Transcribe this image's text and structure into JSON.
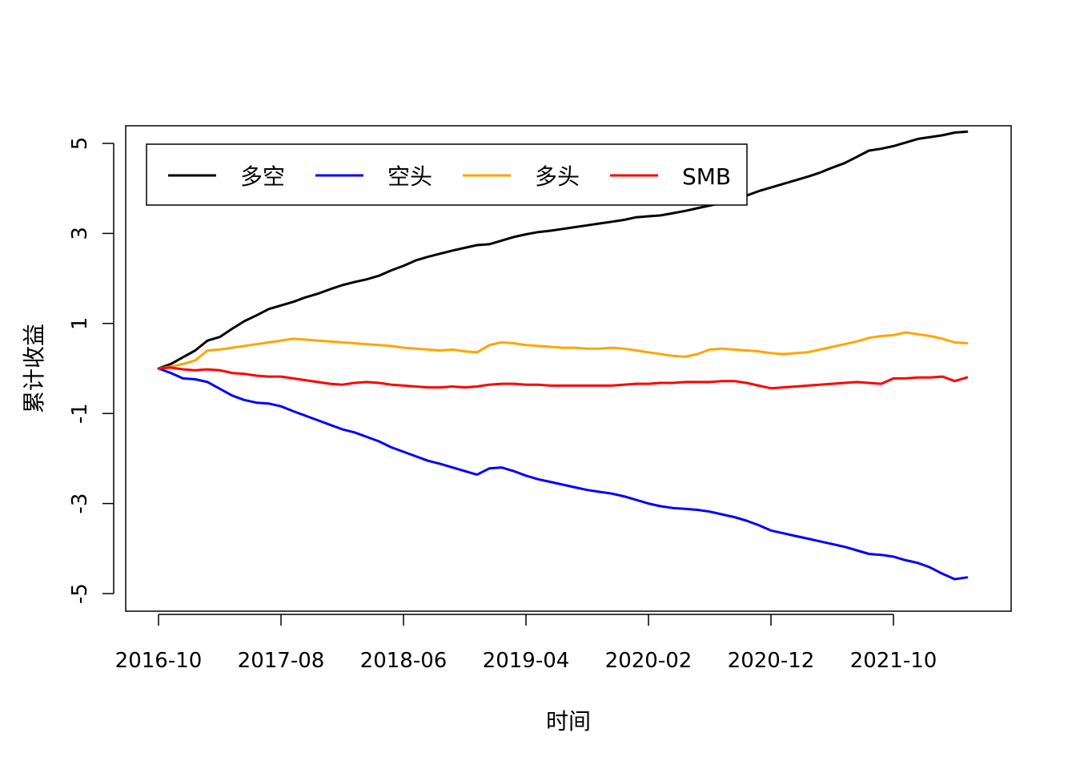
{
  "chart_data": {
    "type": "line",
    "xlabel": "时间",
    "ylabel": "累计收益",
    "ylim": [
      -5.4,
      5.4
    ],
    "yticks": [
      5,
      3,
      1,
      -1,
      -3,
      -5
    ],
    "xticks": [
      "2016-10",
      "2017-08",
      "2018-06",
      "2019-04",
      "2020-02",
      "2020-12",
      "2021-10"
    ],
    "x_start": "2016-10",
    "x_end": "2022-06",
    "legend": {
      "position": "top-left",
      "horizontal": true
    },
    "series": [
      {
        "name": "多空",
        "color": "#000000",
        "values": [
          0,
          0.1,
          0.25,
          0.4,
          0.62,
          0.7,
          0.88,
          1.05,
          1.18,
          1.32,
          1.4,
          1.48,
          1.58,
          1.66,
          1.76,
          1.85,
          1.92,
          1.98,
          2.06,
          2.18,
          2.28,
          2.4,
          2.48,
          2.55,
          2.62,
          2.68,
          2.74,
          2.76,
          2.84,
          2.92,
          2.98,
          3.03,
          3.06,
          3.1,
          3.14,
          3.18,
          3.22,
          3.26,
          3.3,
          3.36,
          3.38,
          3.4,
          3.45,
          3.5,
          3.56,
          3.62,
          3.68,
          3.76,
          3.84,
          3.94,
          4.02,
          4.1,
          4.18,
          4.26,
          4.35,
          4.46,
          4.56,
          4.7,
          4.84,
          4.88,
          4.94,
          5.02,
          5.1,
          5.14,
          5.18,
          5.24,
          5.26
        ]
      },
      {
        "name": "空头",
        "color": "#0000ff",
        "values": [
          0,
          -0.1,
          -0.22,
          -0.24,
          -0.3,
          -0.45,
          -0.6,
          -0.7,
          -0.76,
          -0.78,
          -0.84,
          -0.95,
          -1.05,
          -1.15,
          -1.25,
          -1.35,
          -1.42,
          -1.52,
          -1.62,
          -1.75,
          -1.85,
          -1.95,
          -2.05,
          -2.12,
          -2.2,
          -2.28,
          -2.36,
          -2.22,
          -2.2,
          -2.28,
          -2.38,
          -2.46,
          -2.52,
          -2.58,
          -2.64,
          -2.7,
          -2.74,
          -2.78,
          -2.84,
          -2.92,
          -3.0,
          -3.06,
          -3.1,
          -3.12,
          -3.14,
          -3.18,
          -3.24,
          -3.3,
          -3.38,
          -3.48,
          -3.6,
          -3.66,
          -3.72,
          -3.78,
          -3.84,
          -3.9,
          -3.96,
          -4.04,
          -4.12,
          -4.14,
          -4.18,
          -4.26,
          -4.32,
          -4.42,
          -4.56,
          -4.68,
          -4.64
        ]
      },
      {
        "name": "多头",
        "color": "#ffa500",
        "values": [
          0,
          0.04,
          0.1,
          0.18,
          0.4,
          0.42,
          0.46,
          0.5,
          0.54,
          0.58,
          0.62,
          0.66,
          0.64,
          0.62,
          0.6,
          0.58,
          0.56,
          0.54,
          0.52,
          0.5,
          0.46,
          0.44,
          0.42,
          0.4,
          0.42,
          0.38,
          0.36,
          0.52,
          0.58,
          0.56,
          0.52,
          0.5,
          0.48,
          0.46,
          0.46,
          0.44,
          0.44,
          0.46,
          0.44,
          0.4,
          0.36,
          0.32,
          0.28,
          0.26,
          0.32,
          0.42,
          0.44,
          0.42,
          0.4,
          0.38,
          0.34,
          0.32,
          0.34,
          0.36,
          0.42,
          0.48,
          0.54,
          0.6,
          0.68,
          0.72,
          0.74,
          0.8,
          0.76,
          0.72,
          0.66,
          0.58,
          0.56
        ]
      },
      {
        "name": "SMB",
        "color": "#ff0000",
        "values": [
          0,
          0.02,
          -0.02,
          -0.04,
          -0.02,
          -0.04,
          -0.1,
          -0.12,
          -0.16,
          -0.18,
          -0.18,
          -0.22,
          -0.26,
          -0.3,
          -0.34,
          -0.36,
          -0.32,
          -0.3,
          -0.32,
          -0.36,
          -0.38,
          -0.4,
          -0.42,
          -0.42,
          -0.4,
          -0.42,
          -0.4,
          -0.36,
          -0.34,
          -0.34,
          -0.36,
          -0.36,
          -0.38,
          -0.38,
          -0.38,
          -0.38,
          -0.38,
          -0.38,
          -0.36,
          -0.34,
          -0.34,
          -0.32,
          -0.32,
          -0.3,
          -0.3,
          -0.3,
          -0.28,
          -0.28,
          -0.32,
          -0.38,
          -0.44,
          -0.42,
          -0.4,
          -0.38,
          -0.36,
          -0.34,
          -0.32,
          -0.3,
          -0.32,
          -0.34,
          -0.22,
          -0.22,
          -0.2,
          -0.2,
          -0.18,
          -0.28,
          -0.2
        ]
      }
    ]
  }
}
